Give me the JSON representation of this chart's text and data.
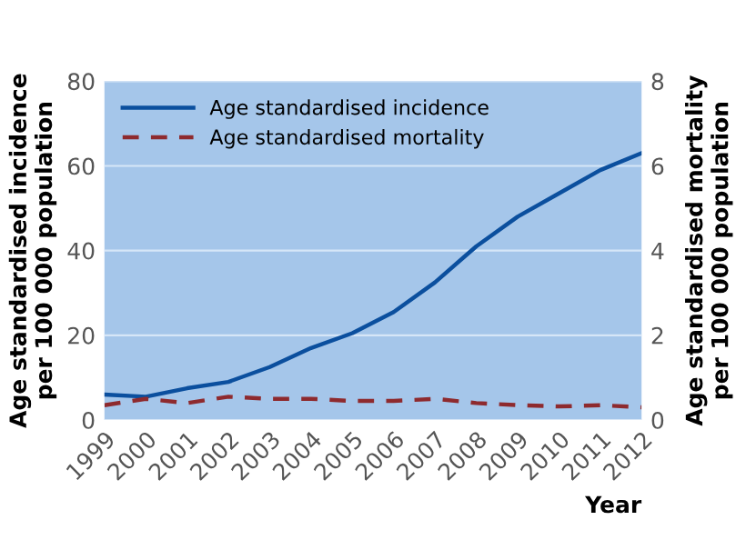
{
  "chart_data": {
    "type": "line",
    "xlabel": "Year",
    "ylabel": "Age standardised incidence\nper 100 000 population",
    "y2label": "Age standardised mortality\nper 100 000 population",
    "x": [
      1999,
      2000,
      2001,
      2002,
      2003,
      2004,
      2005,
      2006,
      2007,
      2008,
      2009,
      2010,
      2011,
      2012
    ],
    "series": [
      {
        "name": "Age standardised incidence",
        "color": "#0b4f9e",
        "line_style": "solid",
        "values": [
          6,
          5.5,
          7.5,
          9,
          12.5,
          17,
          20.5,
          25.5,
          32.5,
          41,
          48,
          53.5,
          59,
          63
        ]
      },
      {
        "name": "Age standardised mortality",
        "color": "#8e2a2e",
        "line_style": "dashed",
        "axis": "y2",
        "values": [
          0.35,
          0.5,
          0.4,
          0.55,
          0.5,
          0.5,
          0.45,
          0.45,
          0.5,
          0.4,
          0.35,
          0.32,
          0.35,
          0.3
        ]
      }
    ],
    "xlim": [
      1999,
      2012
    ],
    "xticks": [
      1999,
      2000,
      2001,
      2002,
      2003,
      2004,
      2005,
      2006,
      2007,
      2008,
      2009,
      2010,
      2011,
      2012
    ],
    "ylim": [
      0,
      80
    ],
    "yticks": [
      0,
      20,
      40,
      60,
      80
    ],
    "y2lim": [
      0,
      8
    ],
    "y2ticks": [
      0,
      2,
      4,
      6,
      8
    ],
    "grid": "y",
    "legend": "top left"
  }
}
